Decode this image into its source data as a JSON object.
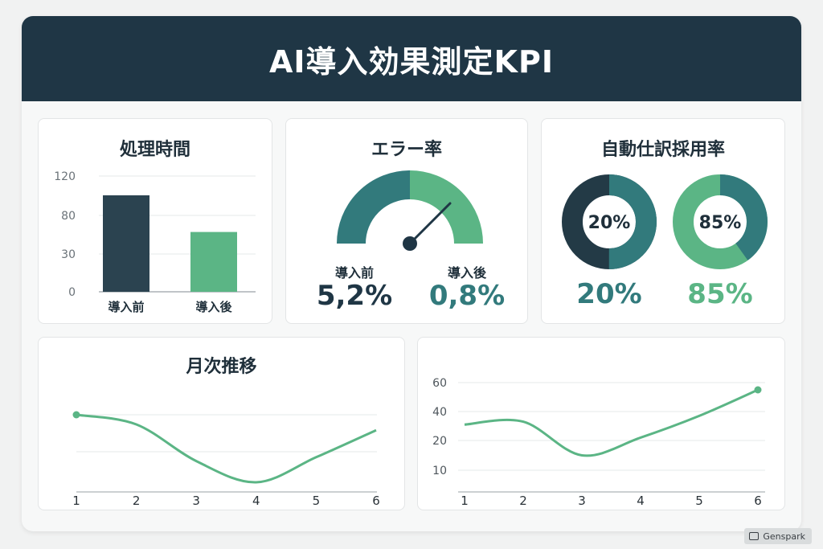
{
  "title": "AI導入効果測定KPI",
  "colors": {
    "dark": "#2b4350",
    "teal": "#327a7c",
    "green": "#5bb585",
    "header": "#1f3645"
  },
  "processing_time": {
    "title": "処理時間",
    "labels": {
      "before": "導入前",
      "after": "導入後"
    }
  },
  "error_rate": {
    "title": "エラー率",
    "before_label": "導入前",
    "before_value": "5,2%",
    "after_label": "導入後",
    "after_value": "0,8%"
  },
  "auto_journal": {
    "title": "自動仕訳採用率",
    "donut1_label": "20%",
    "donut2_label": "85%",
    "value1": "20%",
    "value2": "85%"
  },
  "monthly": {
    "title": "月次推移"
  },
  "watermark": "Genspark",
  "chart_data": [
    {
      "type": "bar",
      "title": "処理時間",
      "categories": [
        "導入前",
        "導入後"
      ],
      "values": [
        100,
        62
      ],
      "yticks": [
        "0",
        "30",
        "80",
        "120"
      ],
      "ylim": [
        0,
        120
      ],
      "grid": true
    },
    {
      "type": "gauge",
      "title": "エラー率",
      "before": 5.2,
      "after": 0.8,
      "unit": "%"
    },
    {
      "type": "pie",
      "title": "自動仕訳採用率",
      "charts": [
        {
          "value": 20,
          "label": "20%",
          "colors": [
            "#327a7c",
            "#233a46"
          ]
        },
        {
          "value": 85,
          "label": "85%",
          "colors": [
            "#327a7c",
            "#5bb585"
          ]
        }
      ]
    },
    {
      "type": "line",
      "title": "月次推移",
      "x": [
        1,
        2,
        3,
        4,
        5,
        6
      ],
      "series": [
        {
          "values": [
            4,
            3.5,
            1.6,
            0.5,
            1.8,
            3.2
          ]
        }
      ],
      "grid": true
    },
    {
      "type": "line",
      "x": [
        1,
        2,
        3,
        4,
        5,
        6
      ],
      "yticks": [
        10,
        20,
        40,
        60
      ],
      "series": [
        {
          "values": [
            31,
            33,
            15,
            22,
            37,
            55
          ]
        }
      ],
      "grid": true
    }
  ]
}
